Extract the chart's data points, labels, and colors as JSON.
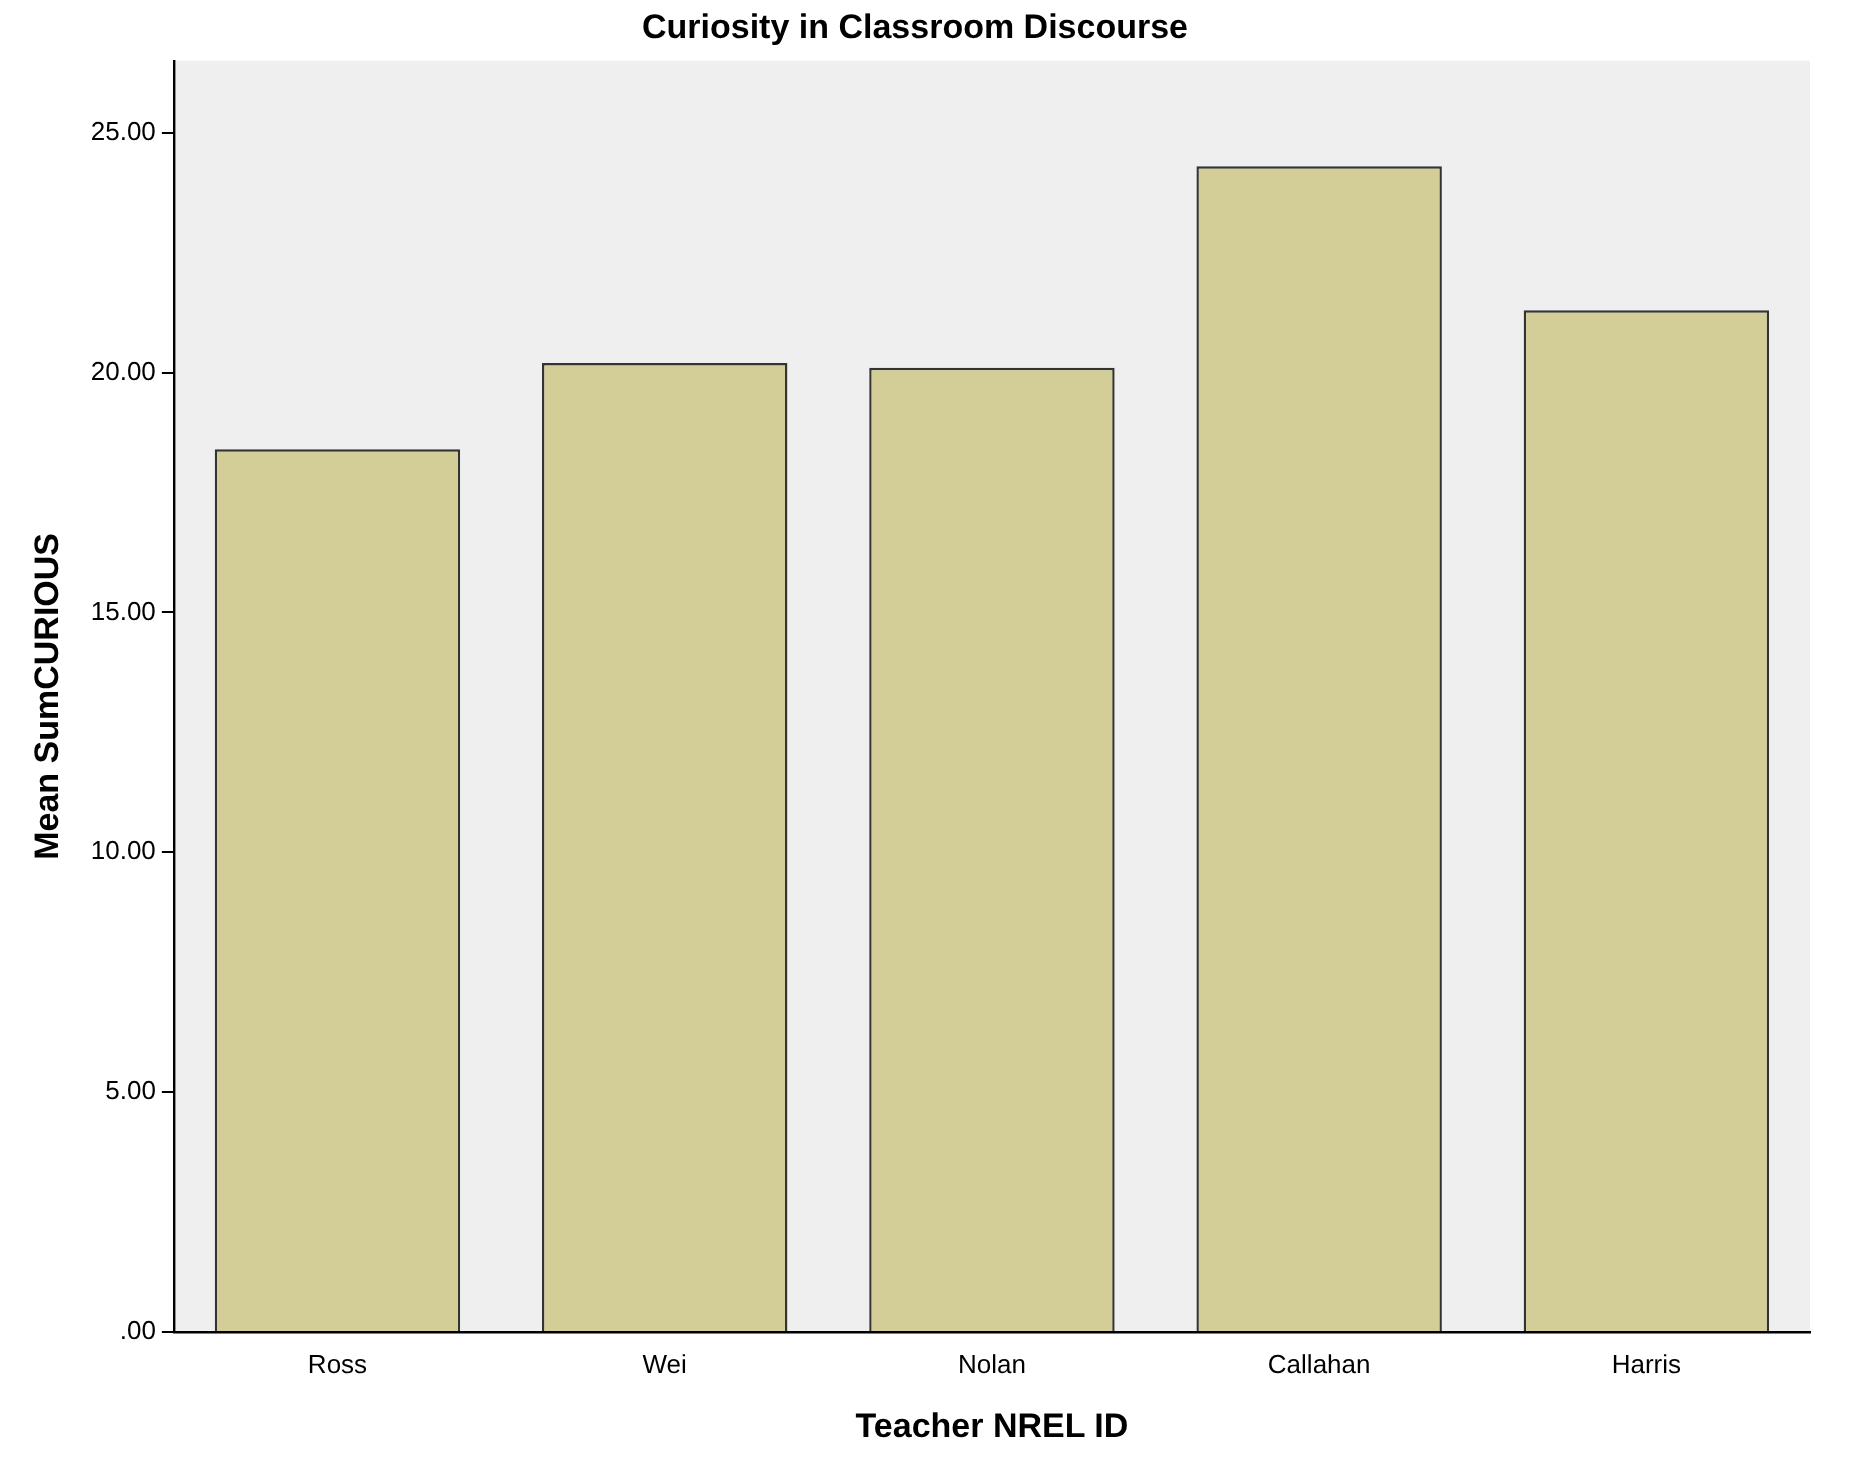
{
  "chart_data": {
    "type": "bar",
    "title": "Curiosity in Classroom Discourse",
    "xlabel": "Teacher NREL ID",
    "ylabel": "Mean SumCURIOUS",
    "categories": [
      "Ross",
      "Wei",
      "Nolan",
      "Callahan",
      "Harris"
    ],
    "values": [
      18.4,
      20.2,
      20.1,
      24.3,
      21.3
    ],
    "color": "#d3ce97",
    "ylim": [
      0,
      26.5
    ],
    "yticks": [
      {
        "value": 0,
        "label": ".00"
      },
      {
        "value": 5,
        "label": "5.00"
      },
      {
        "value": 10,
        "label": "10.00"
      },
      {
        "value": 15,
        "label": "15.00"
      },
      {
        "value": 20,
        "label": "20.00"
      },
      {
        "value": 25,
        "label": "25.00"
      }
    ],
    "grid": false,
    "legend": false
  }
}
